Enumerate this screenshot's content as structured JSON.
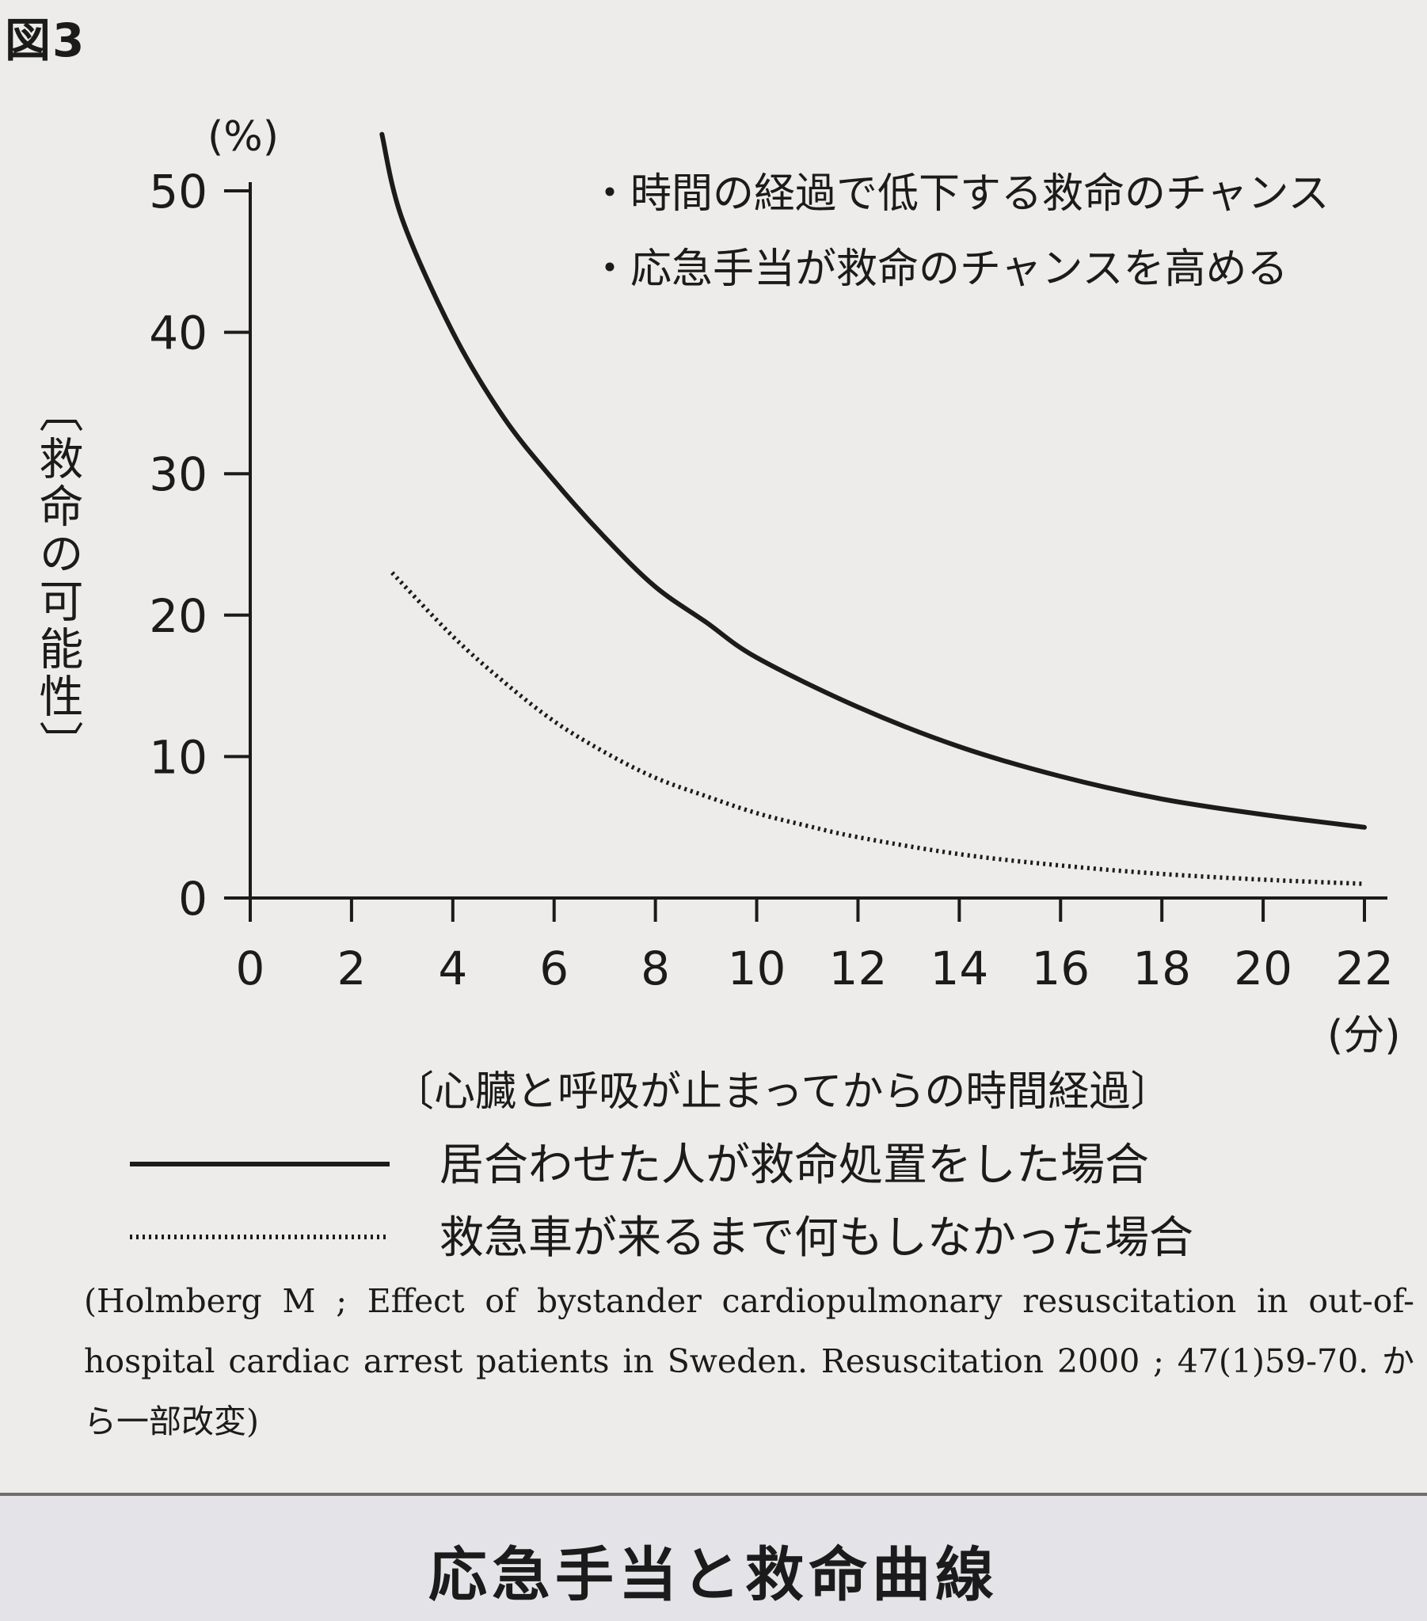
{
  "figure_label": "図3",
  "chart_data": {
    "type": "line",
    "y_unit": "(%)",
    "x_unit": "(分)",
    "ylabel": "〔救命の可能性〕",
    "xlabel": "〔心臓と呼吸が止まってからの時間経過〕",
    "xlim": [
      0,
      22
    ],
    "ylim": [
      0,
      50
    ],
    "x_ticks": [
      0,
      2,
      4,
      6,
      8,
      10,
      12,
      14,
      16,
      18,
      20,
      22
    ],
    "y_ticks": [
      0,
      10,
      20,
      30,
      40,
      50
    ],
    "grid": false,
    "notes": [
      "・時間の経過で低下する救命のチャンス",
      "・応急手当が救命のチャンスを高める"
    ],
    "series": [
      {
        "name": "居合わせた人が救命処置をした場合",
        "style": "solid",
        "x": [
          2.6,
          3,
          4,
          5,
          6,
          7,
          8,
          9,
          10,
          12,
          14,
          16,
          18,
          20,
          22
        ],
        "y": [
          54,
          48,
          40,
          34,
          29.5,
          25.5,
          22,
          19.5,
          17,
          13.5,
          10.7,
          8.6,
          7,
          5.9,
          5
        ]
      },
      {
        "name": "救急車が来るまで何もしなかった場合",
        "style": "dotted",
        "x": [
          2.8,
          4,
          5,
          6,
          7,
          8,
          9,
          10,
          11,
          12,
          14,
          16,
          18,
          20,
          22
        ],
        "y": [
          23,
          18.5,
          15.3,
          12.5,
          10.3,
          8.5,
          7.2,
          6,
          5.1,
          4.3,
          3.1,
          2.3,
          1.7,
          1.3,
          1
        ]
      }
    ]
  },
  "citation": "(Holmberg M ; Effect of bystander cardiopulmonary resuscitation in out-of-hospital cardiac arrest patients in Sweden. Resuscitation 2000 ; 47(1)59-70. から一部改変)",
  "footer_title": "応急手当と救命曲線"
}
